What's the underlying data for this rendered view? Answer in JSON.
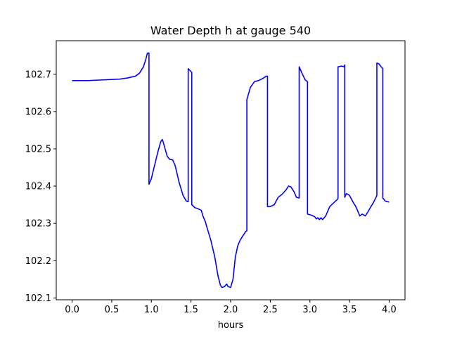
{
  "chart_data": {
    "type": "line",
    "title": "Water Depth h at gauge 540",
    "xlabel": "hours",
    "ylabel": "",
    "xlim": [
      -0.2,
      4.2
    ],
    "ylim": [
      102.095,
      102.79
    ],
    "xticks": [
      0.0,
      0.5,
      1.0,
      1.5,
      2.0,
      2.5,
      3.0,
      3.5,
      4.0
    ],
    "xtick_labels": [
      "0.0",
      "0.5",
      "1.0",
      "1.5",
      "2.0",
      "2.5",
      "3.0",
      "3.5",
      "4.0"
    ],
    "yticks": [
      102.1,
      102.2,
      102.3,
      102.4,
      102.5,
      102.6,
      102.7
    ],
    "ytick_labels": [
      "102.1",
      "102.2",
      "102.3",
      "102.4",
      "102.5",
      "102.6",
      "102.7"
    ],
    "grid": false,
    "series": [
      {
        "color": "#0000ff",
        "x": [
          0.0,
          0.2,
          0.4,
          0.6,
          0.7,
          0.8,
          0.85,
          0.9,
          0.93,
          0.95,
          0.97,
          0.97,
          1.0,
          1.04,
          1.08,
          1.12,
          1.14,
          1.16,
          1.2,
          1.23,
          1.27,
          1.3,
          1.35,
          1.4,
          1.44,
          1.465,
          1.465,
          1.51,
          1.51,
          1.55,
          1.58,
          1.63,
          1.65,
          1.68,
          1.7,
          1.75,
          1.8,
          1.84,
          1.87,
          1.89,
          1.92,
          1.95,
          1.97,
          2.0,
          2.03,
          2.06,
          2.09,
          2.12,
          2.15,
          2.19,
          2.205,
          2.205,
          2.25,
          2.3,
          2.35,
          2.4,
          2.45,
          2.465,
          2.465,
          2.5,
          2.55,
          2.6,
          2.65,
          2.7,
          2.73,
          2.76,
          2.8,
          2.83,
          2.865,
          2.865,
          2.9,
          2.94,
          2.97,
          2.97,
          3.02,
          3.06,
          3.08,
          3.1,
          3.12,
          3.14,
          3.16,
          3.2,
          3.25,
          3.3,
          3.35,
          3.355,
          3.355,
          3.4,
          3.43,
          3.44,
          3.44,
          3.46,
          3.5,
          3.55,
          3.58,
          3.6,
          3.63,
          3.66,
          3.7,
          3.73,
          3.77,
          3.8,
          3.83,
          3.845,
          3.845,
          3.87,
          3.9,
          3.92,
          3.92,
          3.95,
          3.98,
          4.0
        ],
        "y": [
          102.683,
          102.683,
          102.685,
          102.687,
          102.69,
          102.695,
          102.703,
          102.72,
          102.74,
          102.757,
          102.757,
          102.405,
          102.42,
          102.455,
          102.49,
          102.52,
          102.525,
          102.51,
          102.48,
          102.472,
          102.47,
          102.455,
          102.41,
          102.375,
          102.36,
          102.358,
          102.715,
          102.705,
          102.35,
          102.342,
          102.34,
          102.335,
          102.32,
          102.305,
          102.29,
          102.255,
          102.21,
          102.16,
          102.135,
          102.128,
          102.13,
          102.137,
          102.13,
          102.128,
          102.15,
          102.21,
          102.24,
          102.255,
          102.265,
          102.278,
          102.28,
          102.632,
          102.665,
          102.68,
          102.683,
          102.688,
          102.695,
          102.695,
          102.345,
          102.345,
          102.35,
          102.37,
          102.378,
          102.39,
          102.4,
          102.398,
          102.385,
          102.37,
          102.368,
          102.72,
          102.703,
          102.685,
          102.68,
          102.325,
          102.322,
          102.318,
          102.312,
          102.315,
          102.31,
          102.315,
          102.31,
          102.32,
          102.345,
          102.355,
          102.365,
          102.367,
          102.72,
          102.722,
          102.72,
          102.725,
          102.37,
          102.38,
          102.375,
          102.355,
          102.345,
          102.335,
          102.32,
          102.325,
          102.32,
          102.33,
          102.345,
          102.355,
          102.368,
          102.375,
          102.73,
          102.728,
          102.72,
          102.715,
          102.368,
          102.36,
          102.358,
          102.357
        ]
      }
    ]
  }
}
